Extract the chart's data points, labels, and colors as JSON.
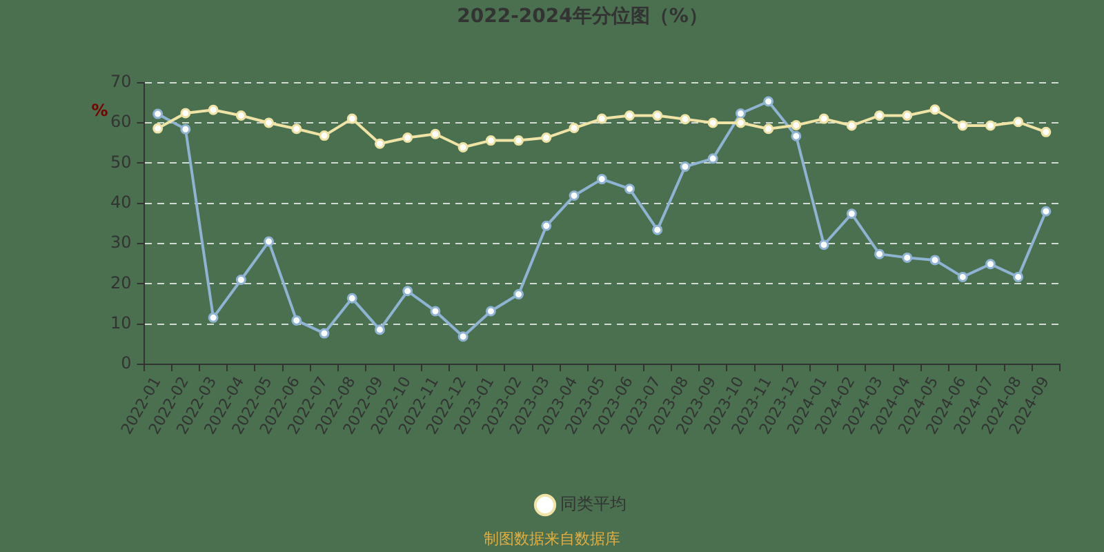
{
  "chart_data": {
    "type": "line",
    "title": "2022-2024年分位图（%）",
    "ylabel": "%",
    "categories": [
      "2022-01",
      "2022-02",
      "2022-03",
      "2022-04",
      "2022-05",
      "2022-06",
      "2022-07",
      "2022-08",
      "2022-09",
      "2022-10",
      "2022-11",
      "2022-12",
      "2023-01",
      "2023-02",
      "2023-03",
      "2023-04",
      "2023-05",
      "2023-06",
      "2023-07",
      "2023-08",
      "2023-09",
      "2023-10",
      "2023-11",
      "2023-12",
      "2024-01",
      "2024-02",
      "2024-03",
      "2024-04",
      "2024-05",
      "2024-06",
      "2024-07",
      "2024-08",
      "2024-09"
    ],
    "series": [
      {
        "color": "#8fb3d3",
        "values": [
          62.2,
          58.4,
          11.6,
          21,
          30.5,
          10.9,
          7.7,
          16.4,
          8.6,
          18.2,
          13.2,
          6.9,
          13.2,
          17.4,
          34.4,
          41.9,
          46,
          43.6,
          33.4,
          49.1,
          51.1,
          62.3,
          65.3,
          56.7,
          29.7,
          37.4,
          27.4,
          26.5,
          25.9,
          21.7,
          24.9,
          21.7,
          38
        ]
      },
      {
        "name": "同类平均",
        "color": "#efe3a6",
        "values": [
          58.6,
          62.4,
          63.2,
          61.8,
          60,
          58.5,
          56.8,
          61,
          54.8,
          56.3,
          57.2,
          53.9,
          55.6,
          55.6,
          56.3,
          58.7,
          61,
          61.8,
          61.8,
          60.9,
          60,
          60,
          58.5,
          59.4,
          61,
          59.3,
          61.8,
          61.8,
          63.3,
          59.3,
          59.3,
          60.2,
          57.7
        ]
      }
    ],
    "ylim": [
      0,
      70
    ],
    "yticks": [
      0,
      10,
      20,
      30,
      40,
      50,
      60,
      70
    ],
    "grid": "y",
    "legend": "bottom",
    "marker": "circle",
    "annotations": [
      "制图数据来自数据库"
    ]
  }
}
